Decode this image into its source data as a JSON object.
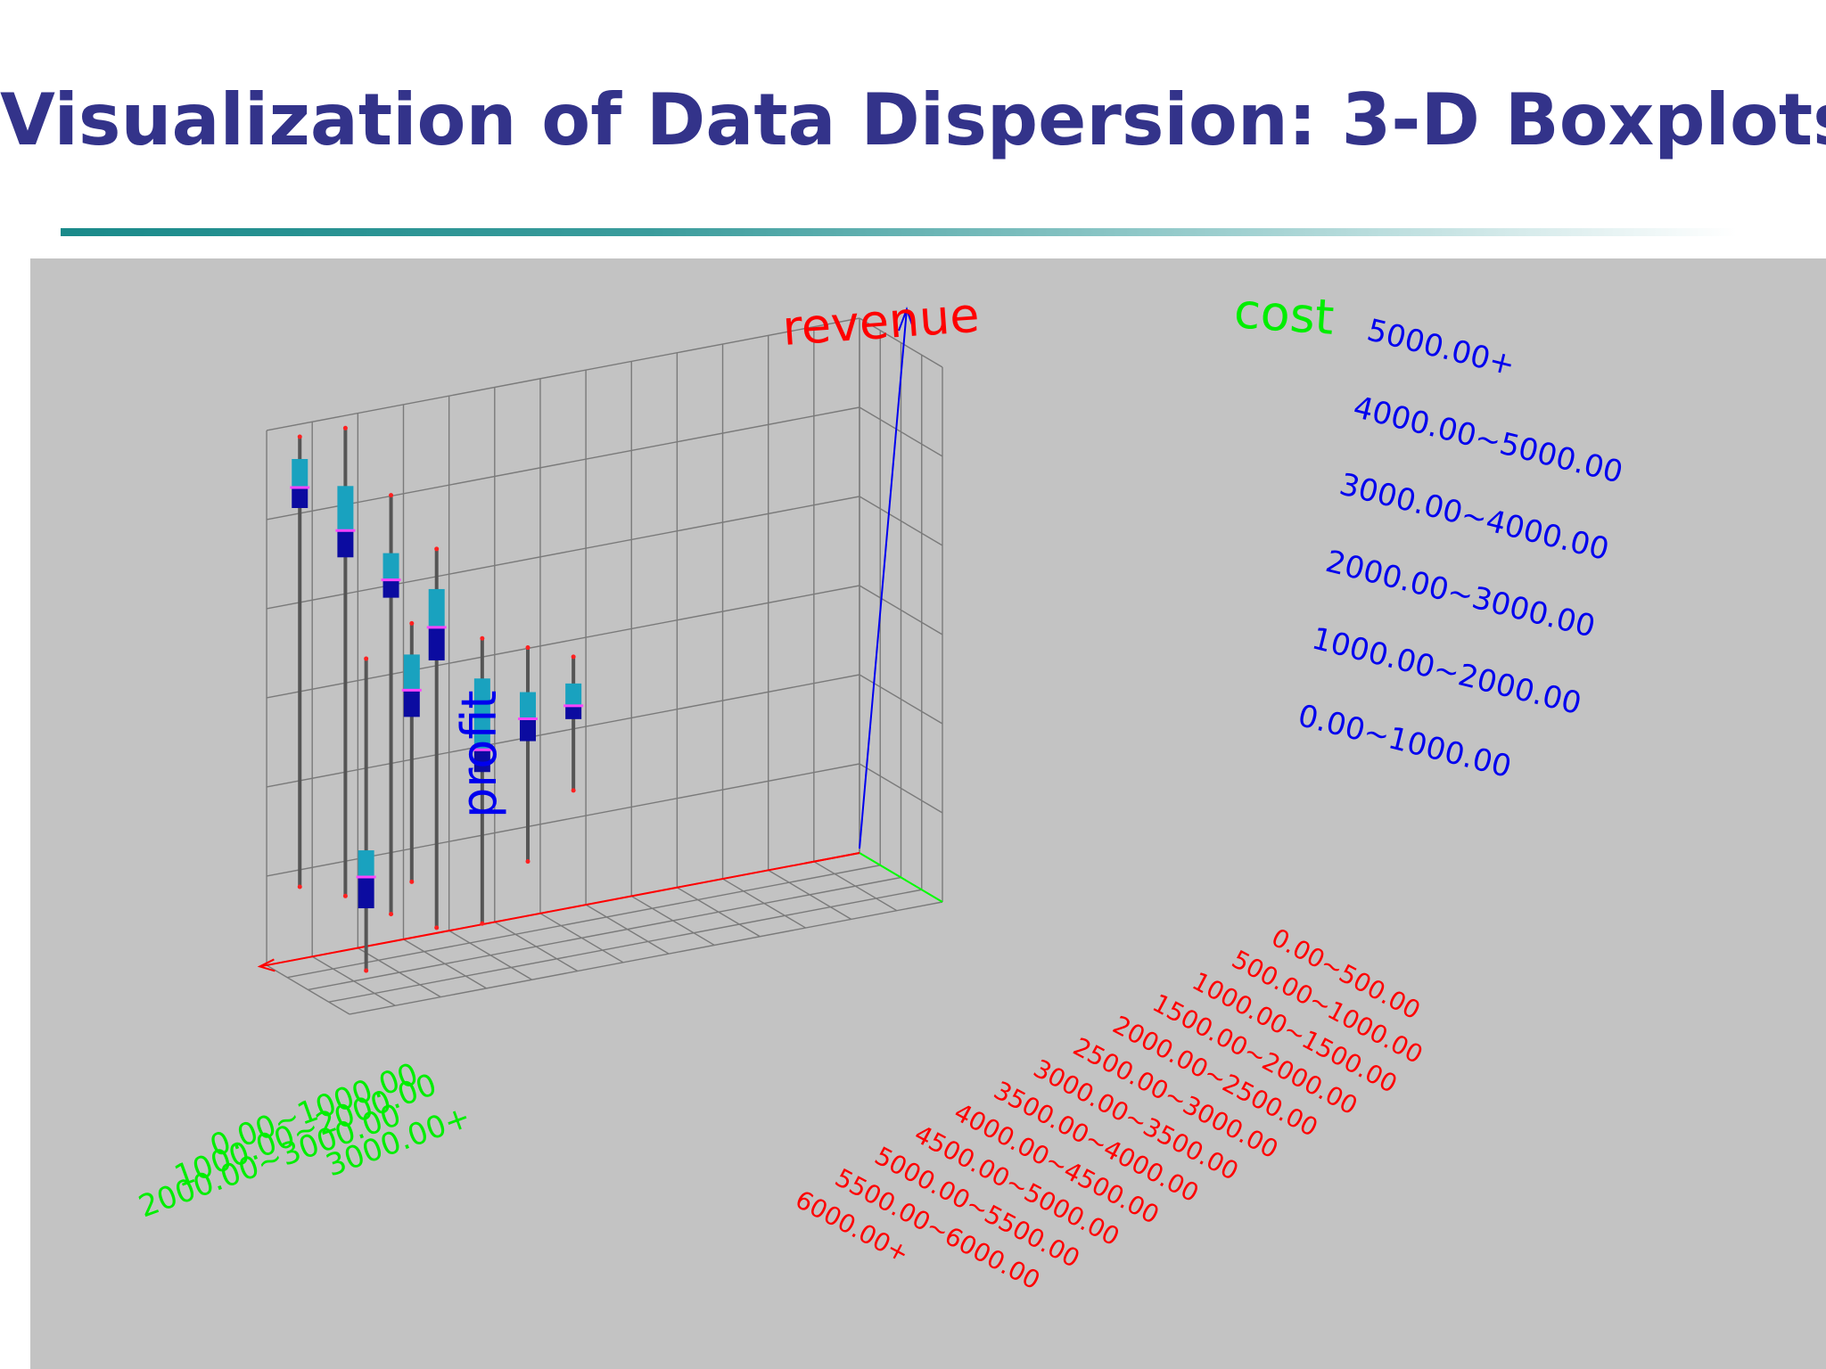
{
  "slide": {
    "title": "Visualization of Data Dispersion: 3-D Boxplots"
  },
  "chart_data": {
    "type": "3d-boxplot",
    "axes": {
      "revenue": {
        "label": "revenue",
        "color": "#ff0000",
        "categories": [
          "0.00~500.00",
          "500.00~1000.00",
          "1000.00~1500.00",
          "1500.00~2000.00",
          "2000.00~2500.00",
          "2500.00~3000.00",
          "3000.00~3500.00",
          "3500.00~4000.00",
          "4000.00~4500.00",
          "4500.00~5000.00",
          "5000.00~5500.00",
          "5500.00~6000.00",
          "6000.00+"
        ]
      },
      "cost": {
        "label": "cost",
        "color": "#00ff00",
        "categories": [
          "0.00~1000.00",
          "1000.00~2000.00",
          "2000.00~3000.00",
          "3000.00+"
        ]
      },
      "profit": {
        "label": "profit",
        "color": "#0000ff",
        "categories": [
          "0.00~1000.00",
          "1000.00~2000.00",
          "2000.00~3000.00",
          "3000.00~4000.00",
          "4000.00~5000.00",
          "5000.00+"
        ]
      }
    },
    "colors": {
      "upper_box": "#19a2bf",
      "lower_box": "#0b0ba0",
      "median": "#ff44ff",
      "whisker": "#555555",
      "outlier": "#ff2020",
      "grid": "#7a7a7a",
      "panel": "#c3c3c3"
    },
    "boxes": [
      {
        "revenue": "6000.00+",
        "cost": "0.00~1000.00",
        "min": 900,
        "q1": 5150,
        "median": 5380,
        "q3": 5700,
        "max": 5950
      },
      {
        "revenue": "5500.00~6000.00",
        "cost": "0.00~1000.00",
        "min": 700,
        "q1": 4500,
        "median": 4800,
        "q3": 5300,
        "max": 5950
      },
      {
        "revenue": "5000.00~5500.00",
        "cost": "0.00~1000.00",
        "min": 400,
        "q1": 3950,
        "median": 4150,
        "q3": 4450,
        "max": 5100
      },
      {
        "revenue": "4500.00~5000.00",
        "cost": "0.00~1000.00",
        "min": 150,
        "q1": 3150,
        "median": 3520,
        "q3": 3950,
        "max": 4400
      },
      {
        "revenue": "4000.00~4500.00",
        "cost": "0.00~1000.00",
        "min": 100,
        "q1": 1800,
        "median": 2050,
        "q3": 2850,
        "max": 3300
      },
      {
        "revenue": "5500.00~6000.00",
        "cost": "1000.00~2000.00",
        "min": 0,
        "q1": 700,
        "median": 1050,
        "q3": 1350,
        "max": 3500
      },
      {
        "revenue": "3500.00~4000.00",
        "cost": "0.00~1000.00",
        "min": 700,
        "q1": 2050,
        "median": 2300,
        "q3": 2600,
        "max": 3100
      },
      {
        "revenue": "5000.00~5500.00",
        "cost": "1000.00~2000.00",
        "min": 900,
        "q1": 2750,
        "median": 3050,
        "q3": 3450,
        "max": 3800
      },
      {
        "revenue": "3000.00~3500.00",
        "cost": "0.00~1000.00",
        "min": 1400,
        "q1": 2200,
        "median": 2350,
        "q3": 2600,
        "max": 2900
      }
    ]
  }
}
